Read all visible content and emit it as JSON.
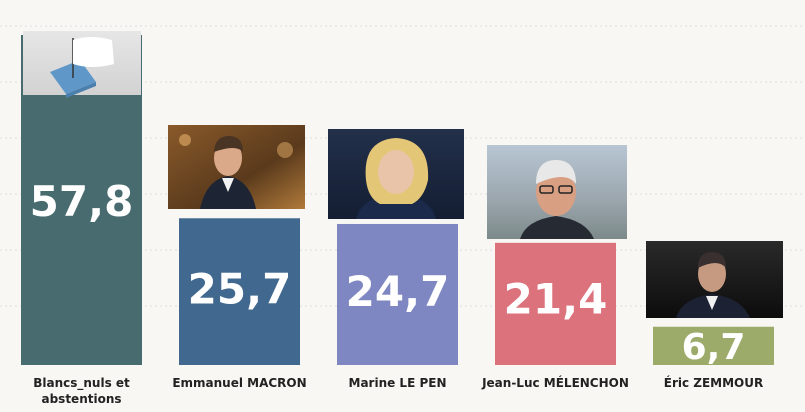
{
  "chart_data": {
    "type": "bar",
    "categories": [
      "Blancs_nuls et abstentions",
      "Emmanuel MACRON",
      "Marine LE PEN",
      "Jean-Luc MÉLENCHON",
      "Éric ZEMMOUR"
    ],
    "values": [
      57.8,
      25.7,
      24.7,
      21.4,
      6.7
    ],
    "value_labels": [
      "57,8",
      "25,7",
      "24,7",
      "21,4",
      "6,7"
    ],
    "colors": [
      "#476b6e",
      "#41688f",
      "#7e87c2",
      "#dc727c",
      "#9caa6a"
    ],
    "icons": [
      "ballot-box-white-flag-icon",
      "portrait-photo",
      "portrait-photo",
      "portrait-photo",
      "portrait-photo"
    ],
    "ylim": [
      0,
      60
    ],
    "grid": true
  }
}
